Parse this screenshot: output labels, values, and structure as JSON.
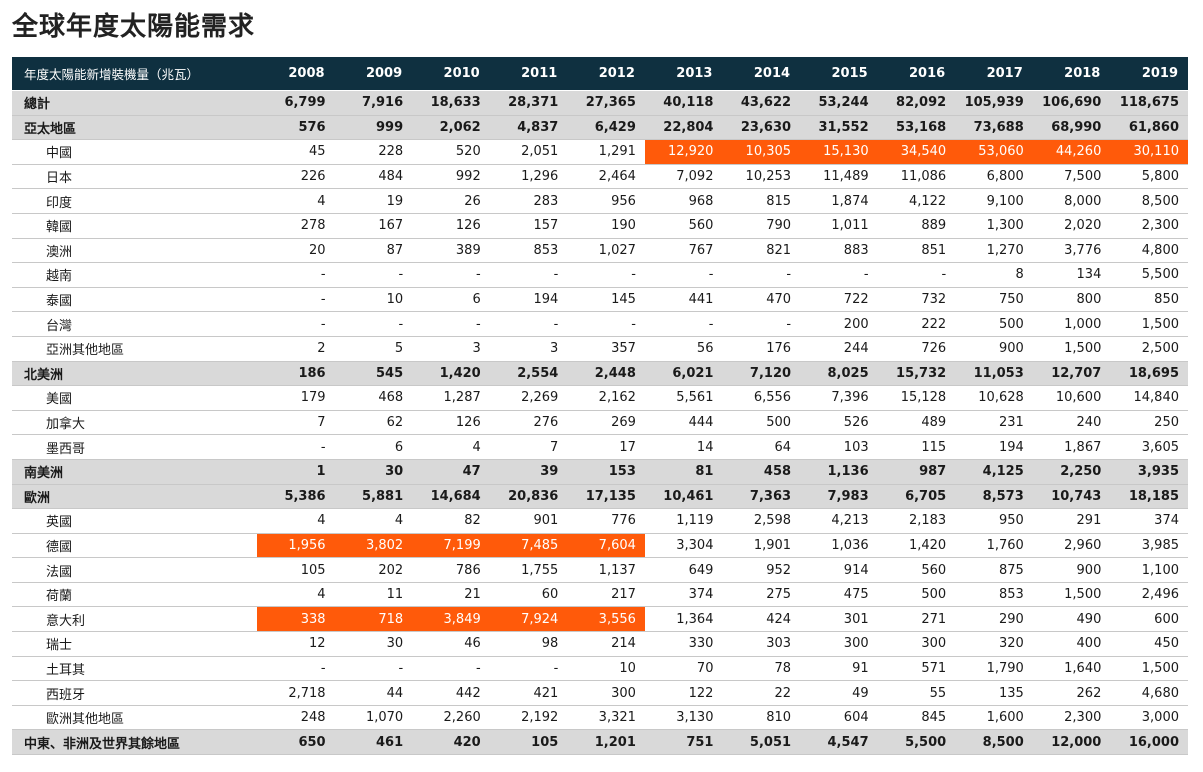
{
  "title": "全球年度太陽能需求",
  "table": {
    "header_label": "年度太陽能新增裝機量（兆瓦）",
    "years": [
      "2008",
      "2009",
      "2010",
      "2011",
      "2012",
      "2013",
      "2014",
      "2015",
      "2016",
      "2017",
      "2018",
      "2019"
    ],
    "highlight_color": "#ff5a0a",
    "rows": [
      {
        "name": "總計",
        "level": "region",
        "values": [
          "6,799",
          "7,916",
          "18,633",
          "28,371",
          "27,365",
          "40,118",
          "43,622",
          "53,244",
          "82,092",
          "105,939",
          "106,690",
          "118,675"
        ],
        "highlight": []
      },
      {
        "name": "亞太地區",
        "level": "region",
        "values": [
          "576",
          "999",
          "2,062",
          "4,837",
          "6,429",
          "22,804",
          "23,630",
          "31,552",
          "53,168",
          "73,688",
          "68,990",
          "61,860"
        ],
        "highlight": []
      },
      {
        "name": "中國",
        "level": "sub",
        "values": [
          "45",
          "228",
          "520",
          "2,051",
          "1,291",
          "12,920",
          "10,305",
          "15,130",
          "34,540",
          "53,060",
          "44,260",
          "30,110"
        ],
        "highlight": [
          5,
          6,
          7,
          8,
          9,
          10,
          11
        ]
      },
      {
        "name": "日本",
        "level": "sub",
        "values": [
          "226",
          "484",
          "992",
          "1,296",
          "2,464",
          "7,092",
          "10,253",
          "11,489",
          "11,086",
          "6,800",
          "7,500",
          "5,800"
        ],
        "highlight": []
      },
      {
        "name": "印度",
        "level": "sub",
        "values": [
          "4",
          "19",
          "26",
          "283",
          "956",
          "968",
          "815",
          "1,874",
          "4,122",
          "9,100",
          "8,000",
          "8,500"
        ],
        "highlight": []
      },
      {
        "name": "韓國",
        "level": "sub",
        "values": [
          "278",
          "167",
          "126",
          "157",
          "190",
          "560",
          "790",
          "1,011",
          "889",
          "1,300",
          "2,020",
          "2,300"
        ],
        "highlight": []
      },
      {
        "name": "澳洲",
        "level": "sub",
        "values": [
          "20",
          "87",
          "389",
          "853",
          "1,027",
          "767",
          "821",
          "883",
          "851",
          "1,270",
          "3,776",
          "4,800"
        ],
        "highlight": []
      },
      {
        "name": "越南",
        "level": "sub",
        "values": [
          "-",
          "-",
          "-",
          "-",
          "-",
          "-",
          "-",
          "-",
          "-",
          "8",
          "134",
          "5,500"
        ],
        "highlight": []
      },
      {
        "name": "泰國",
        "level": "sub",
        "values": [
          "-",
          "10",
          "6",
          "194",
          "145",
          "441",
          "470",
          "722",
          "732",
          "750",
          "800",
          "850"
        ],
        "highlight": []
      },
      {
        "name": "台灣",
        "level": "sub",
        "values": [
          "-",
          "-",
          "-",
          "-",
          "-",
          "-",
          "-",
          "200",
          "222",
          "500",
          "1,000",
          "1,500"
        ],
        "highlight": []
      },
      {
        "name": "亞洲其他地區",
        "level": "sub",
        "values": [
          "2",
          "5",
          "3",
          "3",
          "357",
          "56",
          "176",
          "244",
          "726",
          "900",
          "1,500",
          "2,500"
        ],
        "highlight": []
      },
      {
        "name": "北美洲",
        "level": "region",
        "values": [
          "186",
          "545",
          "1,420",
          "2,554",
          "2,448",
          "6,021",
          "7,120",
          "8,025",
          "15,732",
          "11,053",
          "12,707",
          "18,695"
        ],
        "highlight": []
      },
      {
        "name": "美國",
        "level": "sub",
        "values": [
          "179",
          "468",
          "1,287",
          "2,269",
          "2,162",
          "5,561",
          "6,556",
          "7,396",
          "15,128",
          "10,628",
          "10,600",
          "14,840"
        ],
        "highlight": []
      },
      {
        "name": "加拿大",
        "level": "sub",
        "values": [
          "7",
          "62",
          "126",
          "276",
          "269",
          "444",
          "500",
          "526",
          "489",
          "231",
          "240",
          "250"
        ],
        "highlight": []
      },
      {
        "name": "墨西哥",
        "level": "sub",
        "values": [
          "-",
          "6",
          "4",
          "7",
          "17",
          "14",
          "64",
          "103",
          "115",
          "194",
          "1,867",
          "3,605"
        ],
        "highlight": []
      },
      {
        "name": "南美洲",
        "level": "region",
        "values": [
          "1",
          "30",
          "47",
          "39",
          "153",
          "81",
          "458",
          "1,136",
          "987",
          "4,125",
          "2,250",
          "3,935"
        ],
        "highlight": []
      },
      {
        "name": "歐洲",
        "level": "region",
        "values": [
          "5,386",
          "5,881",
          "14,684",
          "20,836",
          "17,135",
          "10,461",
          "7,363",
          "7,983",
          "6,705",
          "8,573",
          "10,743",
          "18,185"
        ],
        "highlight": []
      },
      {
        "name": "英國",
        "level": "sub",
        "values": [
          "4",
          "4",
          "82",
          "901",
          "776",
          "1,119",
          "2,598",
          "4,213",
          "2,183",
          "950",
          "291",
          "374"
        ],
        "highlight": []
      },
      {
        "name": "德國",
        "level": "sub",
        "values": [
          "1,956",
          "3,802",
          "7,199",
          "7,485",
          "7,604",
          "3,304",
          "1,901",
          "1,036",
          "1,420",
          "1,760",
          "2,960",
          "3,985"
        ],
        "highlight": [
          0,
          1,
          2,
          3,
          4
        ]
      },
      {
        "name": "法國",
        "level": "sub",
        "values": [
          "105",
          "202",
          "786",
          "1,755",
          "1,137",
          "649",
          "952",
          "914",
          "560",
          "875",
          "900",
          "1,100"
        ],
        "highlight": []
      },
      {
        "name": "荷蘭",
        "level": "sub",
        "values": [
          "4",
          "11",
          "21",
          "60",
          "217",
          "374",
          "275",
          "475",
          "500",
          "853",
          "1,500",
          "2,496"
        ],
        "highlight": []
      },
      {
        "name": "意大利",
        "level": "sub",
        "values": [
          "338",
          "718",
          "3,849",
          "7,924",
          "3,556",
          "1,364",
          "424",
          "301",
          "271",
          "290",
          "490",
          "600"
        ],
        "highlight": [
          0,
          1,
          2,
          3,
          4
        ]
      },
      {
        "name": "瑞士",
        "level": "sub",
        "values": [
          "12",
          "30",
          "46",
          "98",
          "214",
          "330",
          "303",
          "300",
          "300",
          "320",
          "400",
          "450"
        ],
        "highlight": []
      },
      {
        "name": "土耳其",
        "level": "sub",
        "values": [
          "-",
          "-",
          "-",
          "-",
          "10",
          "70",
          "78",
          "91",
          "571",
          "1,790",
          "1,640",
          "1,500"
        ],
        "highlight": []
      },
      {
        "name": "西班牙",
        "level": "sub",
        "values": [
          "2,718",
          "44",
          "442",
          "421",
          "300",
          "122",
          "22",
          "49",
          "55",
          "135",
          "262",
          "4,680"
        ],
        "highlight": []
      },
      {
        "name": "歐洲其他地區",
        "level": "sub",
        "values": [
          "248",
          "1,070",
          "2,260",
          "2,192",
          "3,321",
          "3,130",
          "810",
          "604",
          "845",
          "1,600",
          "2,300",
          "3,000"
        ],
        "highlight": []
      },
      {
        "name": "中東、非洲及世界其餘地區",
        "level": "region",
        "values": [
          "650",
          "461",
          "420",
          "105",
          "1,201",
          "751",
          "5,051",
          "4,547",
          "5,500",
          "8,500",
          "12,000",
          "16,000"
        ],
        "highlight": []
      }
    ]
  }
}
